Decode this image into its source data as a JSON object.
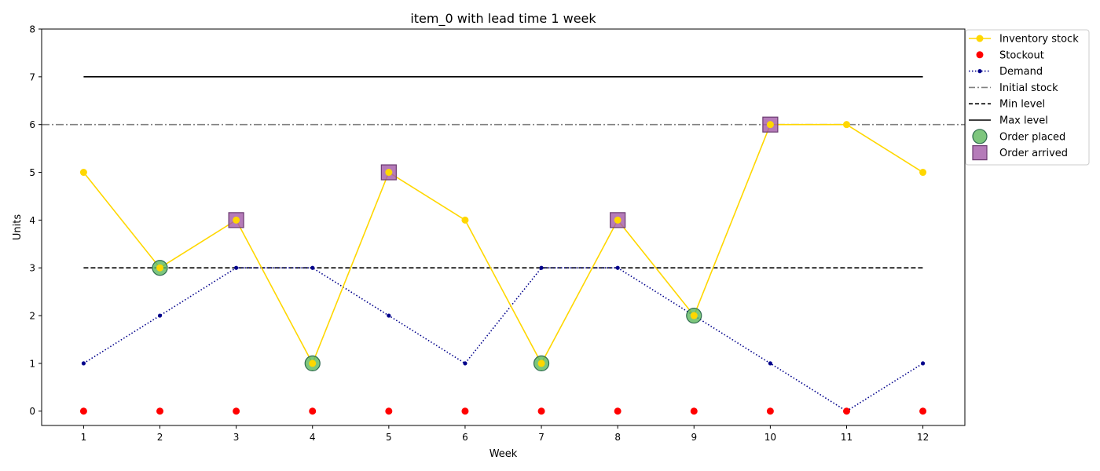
{
  "chart_data": {
    "type": "line",
    "title": "item_0 with lead time 1 week",
    "xlabel": "Week",
    "ylabel": "Units",
    "x": [
      1,
      2,
      3,
      4,
      5,
      6,
      7,
      8,
      9,
      10,
      11,
      12
    ],
    "xticks": [
      "1",
      "2",
      "3",
      "4",
      "5",
      "6",
      "7",
      "8",
      "9",
      "10",
      "11",
      "12"
    ],
    "yticks": [
      "0",
      "1",
      "2",
      "3",
      "4",
      "5",
      "6",
      "7",
      "8"
    ],
    "ylim": [
      -0.3,
      8
    ],
    "xlim": [
      0.45,
      12.55
    ],
    "grid": false,
    "legend_position": "outside-top-right",
    "series": [
      {
        "name": "Inventory stock",
        "kind": "line-marker",
        "color": "#ffd700",
        "values": [
          5,
          3,
          4,
          1,
          5,
          4,
          1,
          4,
          2,
          6,
          6,
          5
        ]
      },
      {
        "name": "Stockout",
        "kind": "scatter",
        "color": "#ff0000",
        "values": [
          0,
          0,
          0,
          0,
          0,
          0,
          0,
          0,
          0,
          0,
          0,
          0
        ]
      },
      {
        "name": "Demand",
        "kind": "dotted-line",
        "color": "#00008b",
        "values": [
          1,
          2,
          3,
          3,
          2,
          1,
          3,
          3,
          2,
          1,
          0,
          1
        ]
      },
      {
        "name": "Initial stock",
        "kind": "hline-dashdot",
        "color": "#808080",
        "value": 6
      },
      {
        "name": "Min level",
        "kind": "dashed-line",
        "color": "#000000",
        "value": 3
      },
      {
        "name": "Max level",
        "kind": "solid-line",
        "color": "#000000",
        "value": 7
      },
      {
        "name": "Order placed",
        "kind": "circle-marker",
        "color": "#5cb85c",
        "points": [
          [
            2,
            3
          ],
          [
            4,
            1
          ],
          [
            7,
            1
          ],
          [
            9,
            2
          ]
        ]
      },
      {
        "name": "Order arrived",
        "kind": "square-marker",
        "color": "#a35aa8",
        "points": [
          [
            3,
            4
          ],
          [
            5,
            5
          ],
          [
            8,
            4
          ],
          [
            10,
            6
          ]
        ]
      }
    ]
  }
}
